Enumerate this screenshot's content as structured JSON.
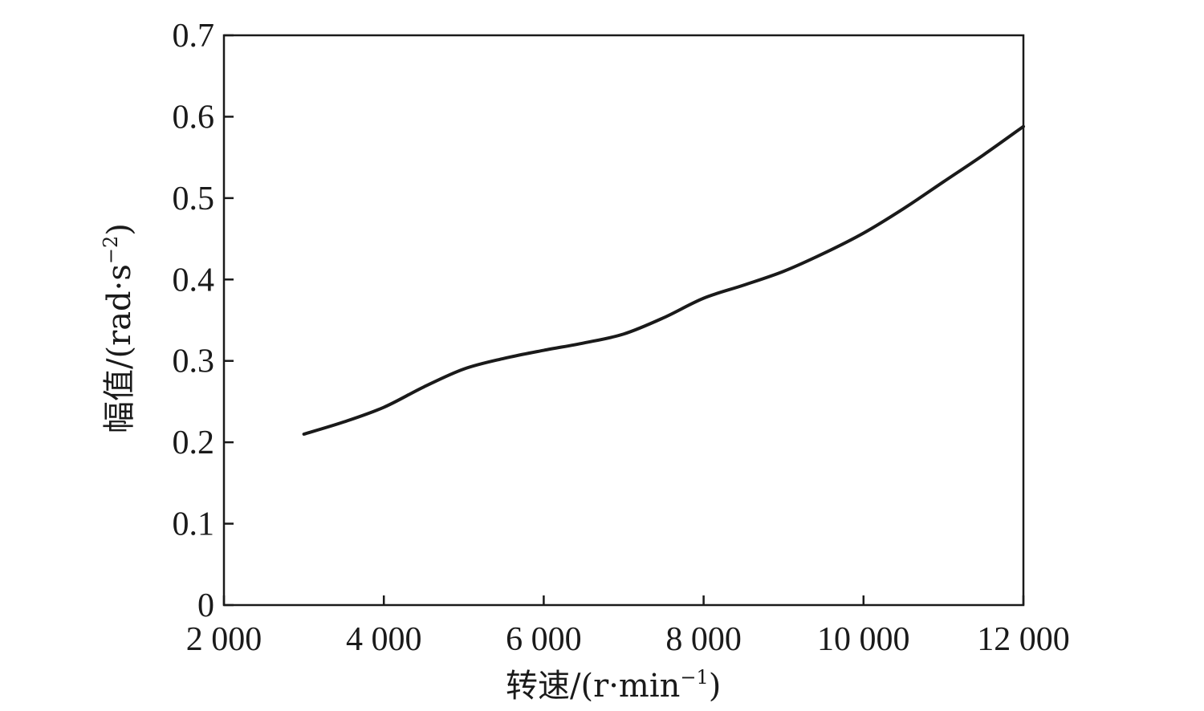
{
  "chart_data": {
    "type": "line",
    "xlabel": "转速/(r·min",
    "xlabel_sup": "−1",
    "xlabel_close": ")",
    "ylabel": "幅值/(rad·s",
    "ylabel_sup": "−2",
    "ylabel_close": ")",
    "xlim": [
      2000,
      12000
    ],
    "ylim": [
      0,
      0.7
    ],
    "xticks": [
      2000,
      4000,
      6000,
      8000,
      10000,
      12000
    ],
    "xtick_labels": [
      "2 000",
      "4 000",
      "6 000",
      "8 000",
      "10 000",
      "12 000"
    ],
    "yticks": [
      0,
      0.1,
      0.2,
      0.3,
      0.4,
      0.5,
      0.6,
      0.7
    ],
    "ytick_labels": [
      "0",
      "0.1",
      "0.2",
      "0.3",
      "0.4",
      "0.5",
      "0.6",
      "0.7"
    ],
    "grid": false,
    "series": [
      {
        "color": "#1a1a1a",
        "x": [
          3000,
          3500,
          4000,
          4500,
          5000,
          5500,
          6000,
          6500,
          7000,
          7500,
          8000,
          8500,
          9000,
          9500,
          10000,
          10500,
          11000,
          11500,
          12000
        ],
        "y": [
          0.21,
          0.225,
          0.243,
          0.268,
          0.29,
          0.303,
          0.313,
          0.322,
          0.333,
          0.353,
          0.377,
          0.393,
          0.41,
          0.432,
          0.457,
          0.487,
          0.52,
          0.553,
          0.588
        ]
      }
    ]
  }
}
